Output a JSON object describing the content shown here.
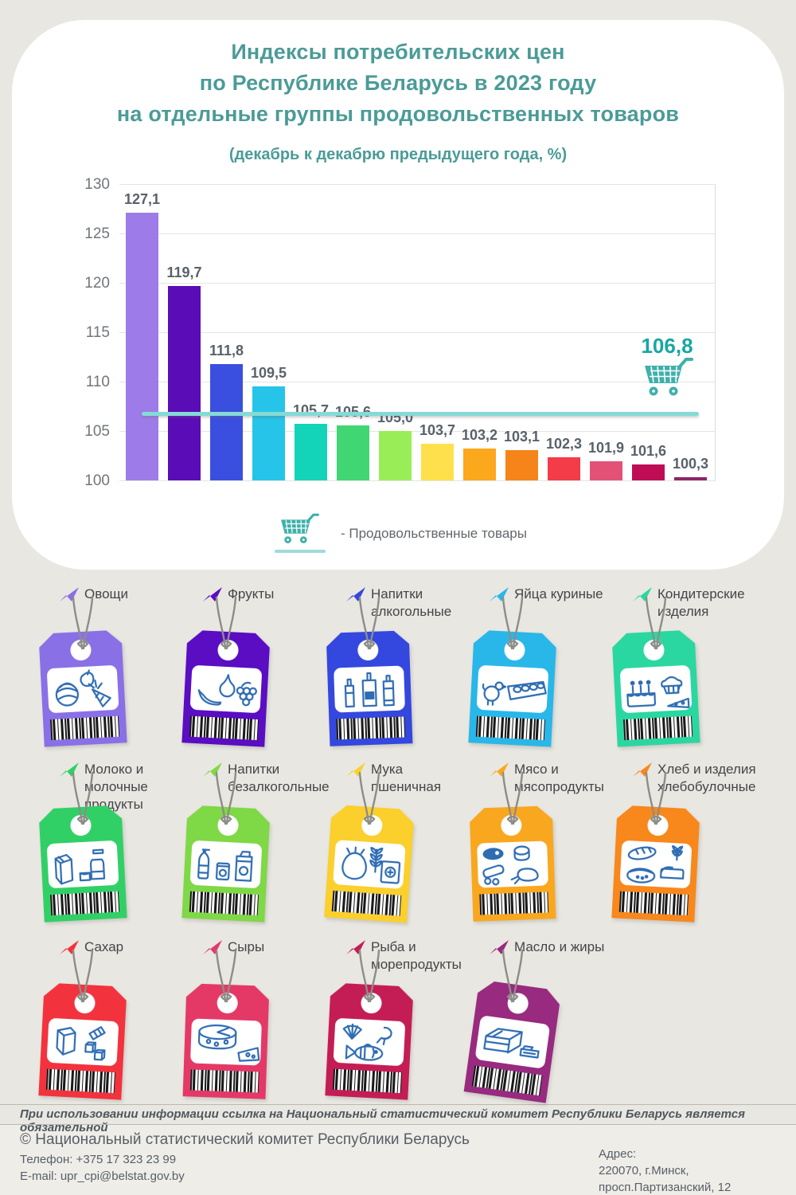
{
  "header": {
    "title_line1": "Индексы потребительских цен",
    "title_line2": "по Республике Беларусь в 2023 году",
    "title_line3": "на отдельные группы продовольственных товаров",
    "subtitle": "(декабрь к декабрю предыдущего года, %)",
    "title_color": "#4b9b97"
  },
  "chart_data": {
    "type": "bar",
    "title": "Индексы потребительских цен по Республике Беларусь в 2023 году на отдельные группы продовольственных товаров",
    "subtitle": "(декабрь к декабрю предыдущего года, %)",
    "categories": [
      "Овощи",
      "Фрукты",
      "Напитки алкогольные",
      "Яйца куриные",
      "Кондитерские изделия",
      "Молоко и молочные продукты",
      "Напитки безалкогольные",
      "Мука пшеничная",
      "Мясо и мясопродукты",
      "Хлеб и изделия хлебобулочные",
      "Сахар",
      "Сыры",
      "Рыба и морепродукты",
      "Масло и жиры"
    ],
    "values": [
      127.1,
      119.7,
      111.8,
      109.5,
      105.7,
      105.6,
      105.0,
      103.7,
      103.2,
      103.1,
      102.3,
      101.9,
      101.6,
      100.3
    ],
    "value_labels": [
      "127,1",
      "119,7",
      "111,8",
      "109,5",
      "105,7",
      "105,6",
      "105,0",
      "103,7",
      "103,2",
      "103,1",
      "102,3",
      "101,9",
      "101,6",
      "100,3"
    ],
    "bar_colors": [
      "#9d7ce9",
      "#5a0db6",
      "#3a4fe0",
      "#26c4e9",
      "#13d4b8",
      "#40d673",
      "#99ee58",
      "#fee04c",
      "#fba81d",
      "#f5841a",
      "#f43b48",
      "#e35177",
      "#bf0d55",
      "#8e2567"
    ],
    "ylim": [
      100,
      130
    ],
    "yticks": [
      100,
      105,
      110,
      115,
      120,
      125,
      130
    ],
    "grid": "horizontal gridlines, no x tick labels",
    "legend_position": "below chart",
    "reference_line": {
      "value": 106.8,
      "label": "106,8",
      "line_color": "#85dad6",
      "label_color": "#17a7a3",
      "icon": "shopping-cart-icon",
      "legend_text": "- Продовольственные товары"
    }
  },
  "legend": {
    "icon": "shopping-cart-icon",
    "label": "- Продовольственные товары",
    "underline_color": "#9edbd9"
  },
  "tags": [
    {
      "label": "Овощи",
      "color": "#8a70e6",
      "icon": "vegetables-icon"
    },
    {
      "label": "Фрукты",
      "color": "#5a0dc2",
      "icon": "fruits-icon"
    },
    {
      "label": "Напитки алкогольные",
      "color": "#3447de",
      "icon": "alcohol-icon"
    },
    {
      "label": "Яйца куриные",
      "color": "#29b7e9",
      "icon": "eggs-icon"
    },
    {
      "label": "Кондитерские изделия",
      "color": "#2bd7a0",
      "icon": "confectionery-icon"
    },
    {
      "label": "Молоко и молочные продукты",
      "color": "#31d066",
      "icon": "milk-icon"
    },
    {
      "label": "Напитки безалкогольные",
      "color": "#7fd846",
      "icon": "softdrinks-icon"
    },
    {
      "label": "Мука пшеничная",
      "color": "#fbcf2c",
      "icon": "flour-icon"
    },
    {
      "label": "Мясо и мясопродукты",
      "color": "#f9a71f",
      "icon": "meat-icon"
    },
    {
      "label": "Хлеб и изделия хлебобулочные",
      "color": "#f8871c",
      "icon": "bread-icon"
    },
    {
      "label": "Сахар",
      "color": "#f2333e",
      "icon": "sugar-icon"
    },
    {
      "label": "Сыры",
      "color": "#e43967",
      "icon": "cheese-icon"
    },
    {
      "label": "Рыба и морепродукты",
      "color": "#c41d55",
      "icon": "fish-icon"
    },
    {
      "label": "Масло и жиры",
      "color": "#982a80",
      "icon": "butter-icon"
    }
  ],
  "footer": {
    "disclaimer": "При использовании информации ссылка на Национальный статистический комитет Республики Беларусь является обязательной",
    "copyright": "© Национальный статистический комитет Республики Беларусь",
    "phone": "Телефон: +375 17 323 23 99",
    "email": "E-mail: upr_cpi@belstat.gov.by",
    "address_label": "Адрес:",
    "address_line1": "220070, г.Минск,",
    "address_line2": "просп.Партизанский, 12"
  }
}
